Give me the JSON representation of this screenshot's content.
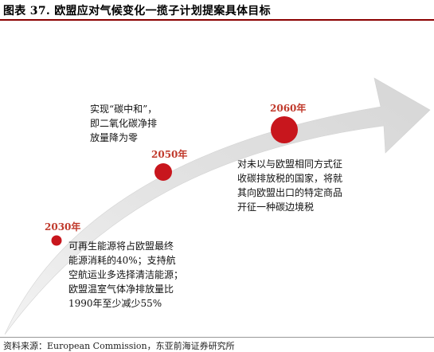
{
  "title": "图表 37. 欧盟应对气候变化一揽子计划提案具体目标",
  "milestones": [
    {
      "year": "2030年",
      "text": "可再生能源将占欧盟最终\n能源消耗的40%；支持航\n空航运业多选择清洁能源；\n欧盟温室气体净排放量比\n1990年至少减少55%"
    },
    {
      "year": "2050年",
      "text": "实现“碳中和”，\n即二氧化碳净排\n放量降为零"
    },
    {
      "year": "2060年",
      "text": "对未以与欧盟相同方式征\n收碳排放税的国家，将就\n其向欧盟出口的特定商品\n开征一种碳边境税"
    }
  ],
  "colors": {
    "accent": "#c0392b",
    "arrow": "#e3e3e3",
    "rule": "#8b0000"
  },
  "source": "资料来源：European Commission，东亚前海证券研究所"
}
